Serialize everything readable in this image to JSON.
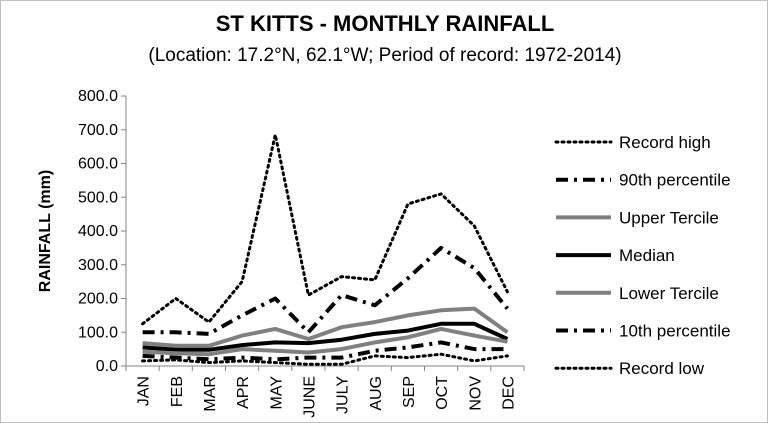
{
  "chart_data": {
    "type": "line",
    "title": "ST KITTS - MONTHLY RAINFALL",
    "subtitle": "(Location: 17.2°N, 62.1°W; Period of record: 1972-2014)",
    "xlabel": "",
    "ylabel": "RAINFALL (mm)",
    "categories": [
      "JAN",
      "FEB",
      "MAR",
      "APR",
      "MAY",
      "JUNE",
      "JULY",
      "AUG",
      "SEP",
      "OCT",
      "NOV",
      "DEC"
    ],
    "ylim": [
      0,
      800
    ],
    "yticks": [
      "0.0",
      "100.0",
      "200.0",
      "300.0",
      "400.0",
      "500.0",
      "600.0",
      "700.0",
      "800.0"
    ],
    "grid": false,
    "legend_position": "right",
    "series": [
      {
        "name": "Record high",
        "color": "#000000",
        "style": "dotted",
        "width": 3,
        "values": [
          125,
          200,
          130,
          250,
          685,
          210,
          265,
          255,
          480,
          510,
          415,
          220
        ]
      },
      {
        "name": "90th percentile",
        "color": "#000000",
        "style": "dashdot",
        "width": 4,
        "values": [
          100,
          100,
          95,
          150,
          200,
          100,
          210,
          180,
          260,
          350,
          290,
          170
        ]
      },
      {
        "name": "Upper Tercile",
        "color": "#808080",
        "style": "solid",
        "width": 4,
        "values": [
          68,
          60,
          60,
          90,
          110,
          80,
          115,
          130,
          150,
          165,
          170,
          100
        ]
      },
      {
        "name": "Median",
        "color": "#000000",
        "style": "solid",
        "width": 4,
        "values": [
          55,
          48,
          48,
          62,
          70,
          68,
          78,
          95,
          105,
          125,
          125,
          80
        ]
      },
      {
        "name": "Lower Tercile",
        "color": "#808080",
        "style": "solid",
        "width": 4,
        "values": [
          42,
          38,
          35,
          50,
          45,
          40,
          50,
          70,
          85,
          110,
          90,
          72
        ]
      },
      {
        "name": "10th percentile",
        "color": "#000000",
        "style": "dashdot",
        "width": 4,
        "values": [
          30,
          25,
          20,
          25,
          20,
          25,
          25,
          45,
          55,
          70,
          50,
          50
        ]
      },
      {
        "name": "Record low",
        "color": "#000000",
        "style": "dotted",
        "width": 3,
        "values": [
          15,
          18,
          10,
          15,
          10,
          5,
          5,
          30,
          25,
          35,
          15,
          30
        ]
      }
    ]
  }
}
